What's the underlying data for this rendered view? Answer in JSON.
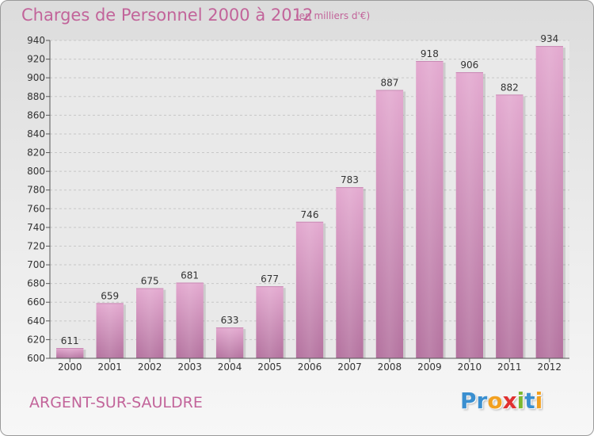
{
  "title": "Charges de Personnel 2000 à 2012",
  "subtitle": "(en milliers d'€)",
  "location": "ARGENT-SUR-SAULDRE",
  "logo": {
    "letters": [
      "P",
      "r",
      "o",
      "x",
      "i",
      "t",
      "i"
    ],
    "colors": [
      "#3a8fd0",
      "#3a8fd0",
      "#f2a020",
      "#e03030",
      "#7cb830",
      "#3a8fd0",
      "#f2a020"
    ]
  },
  "colors": {
    "accent": "#c2649a",
    "bar_top": "#e3a8cf",
    "bar_bottom": "#b3719e"
  },
  "chart_data": {
    "type": "bar",
    "title": "Charges de Personnel 2000 à 2012",
    "subtitle": "(en milliers d'€)",
    "categories": [
      "2000",
      "2001",
      "2002",
      "2003",
      "2004",
      "2005",
      "2006",
      "2007",
      "2008",
      "2009",
      "2010",
      "2011",
      "2012"
    ],
    "values": [
      611,
      659,
      675,
      681,
      633,
      677,
      746,
      783,
      887,
      918,
      906,
      882,
      934
    ],
    "ylim": [
      600,
      940
    ],
    "yticks": [
      600,
      620,
      640,
      660,
      680,
      700,
      720,
      740,
      760,
      780,
      800,
      820,
      840,
      860,
      880,
      900,
      920,
      940
    ],
    "grid": true,
    "legend": "none"
  }
}
